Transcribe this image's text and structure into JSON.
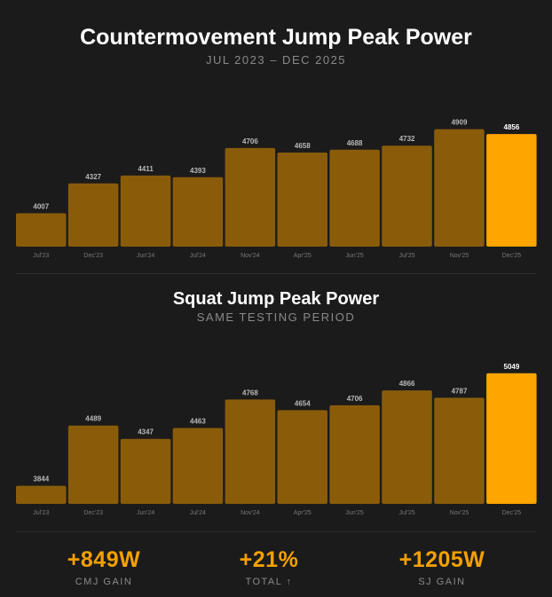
{
  "chart_data": [
    {
      "type": "bar",
      "title": "Countermovement Jump Peak Power",
      "subtitle": "JUL 2023 – DEC 2025",
      "categories": [
        "Jul'23",
        "Dec'23",
        "Jun'24",
        "Jul'24",
        "Nov'24",
        "Apr'25",
        "Jun'25",
        "Jul'25",
        "Nov'25",
        "Dec'25"
      ],
      "values": [
        4007,
        4327,
        4411,
        4393,
        4706,
        4658,
        4688,
        4732,
        4909,
        4856
      ],
      "highlight_index": 9,
      "grid": false,
      "legend": "none",
      "colors": {
        "bar": "#8a5c0a",
        "highlight": "#ffa500",
        "label": "#b9b9b9",
        "highlight_label": "#ffffff",
        "tick": "#777777"
      }
    },
    {
      "type": "bar",
      "title": "Squat Jump Peak Power",
      "subtitle": "SAME TESTING PERIOD",
      "categories": [
        "Jul'23",
        "Dec'23",
        "Jun'24",
        "Jul'24",
        "Nov'24",
        "Apr'25",
        "Jun'25",
        "Jul'25",
        "Nov'25",
        "Dec'25"
      ],
      "values": [
        3844,
        4489,
        4347,
        4463,
        4768,
        4654,
        4706,
        4866,
        4787,
        5049
      ],
      "highlight_index": 9,
      "grid": false,
      "legend": "none",
      "colors": {
        "bar": "#8a5c0a",
        "highlight": "#ffa500",
        "label": "#b9b9b9",
        "highlight_label": "#ffffff",
        "tick": "#777777"
      }
    }
  ],
  "stats": [
    {
      "value": "+849W",
      "label": "CMJ GAIN"
    },
    {
      "value": "+21%",
      "label": "TOTAL ↑"
    },
    {
      "value": "+1205W",
      "label": "SJ GAIN"
    }
  ]
}
